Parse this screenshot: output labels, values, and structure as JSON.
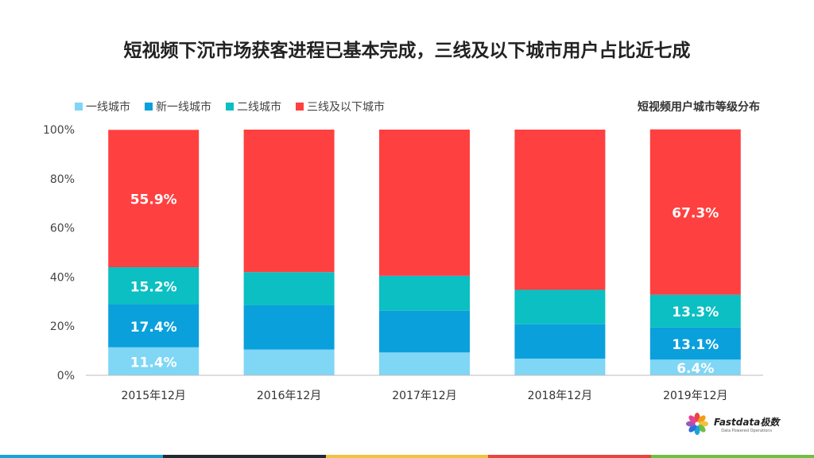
{
  "title": "短视频下沉市场获客进程已基本完成，三线及以下城市用户占比近七成",
  "chart_subtitle": "短视频用户城市等级分布",
  "logo": {
    "name": "Fastdata极数",
    "tagline": "Data Powered Operations"
  },
  "strip_colors": [
    "#1aa3d8",
    "#222a33",
    "#f3c141",
    "#e9453f",
    "#6fbf45"
  ],
  "chart_data": {
    "type": "bar",
    "stacked": true,
    "categories": [
      "2015年12月",
      "2016年12月",
      "2017年12月",
      "2018年12月",
      "2019年12月"
    ],
    "ylim": [
      0,
      100
    ],
    "yticks": [
      "0%",
      "20%",
      "40%",
      "60%",
      "80%",
      "100%"
    ],
    "series": [
      {
        "name": "一线城市",
        "color": "#7fd6f5",
        "values": [
          11.4,
          10.5,
          9.3,
          6.8,
          6.4
        ],
        "labels": [
          "11.4%",
          "",
          "",
          "",
          "6.4%"
        ]
      },
      {
        "name": "新一线城市",
        "color": "#0aa0dc",
        "values": [
          17.4,
          18.0,
          17.0,
          14.0,
          13.1
        ],
        "labels": [
          "17.4%",
          "",
          "",
          "",
          "13.1%"
        ]
      },
      {
        "name": "二线城市",
        "color": "#0bbfc2",
        "values": [
          15.2,
          13.5,
          14.2,
          14.0,
          13.3
        ],
        "labels": [
          "15.2%",
          "",
          "",
          "",
          "13.3%"
        ]
      },
      {
        "name": "三线及以下城市",
        "color": "#ff4040",
        "values": [
          55.9,
          58.0,
          59.5,
          65.2,
          67.3
        ],
        "labels": [
          "55.9%",
          "",
          "",
          "",
          "67.3%"
        ]
      }
    ]
  }
}
